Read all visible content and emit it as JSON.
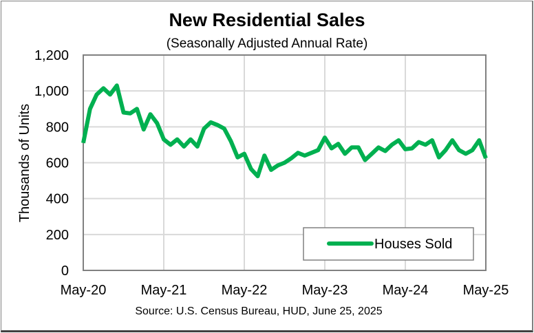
{
  "chart_data": {
    "type": "line",
    "title": "New Residential Sales",
    "subtitle": "(Seasonally Adjusted Annual Rate)",
    "xlabel": "",
    "ylabel": "Thousands of Units",
    "source": "Source:  U.S. Census Bureau, HUD, June 25, 2025",
    "ylim": [
      0,
      1200
    ],
    "yticks": [
      0,
      200,
      400,
      600,
      800,
      1000,
      1200
    ],
    "ytick_labels": [
      "0",
      "200",
      "400",
      "600",
      "800",
      "1,000",
      "1,200"
    ],
    "xtick_labels": [
      "May-20",
      "May-21",
      "May-22",
      "May-23",
      "May-24",
      "May-25"
    ],
    "x_start": "May-20",
    "x_end": "May-25",
    "x_unit": "month",
    "grid": true,
    "legend": {
      "position": "bottom-right",
      "entries": [
        "Houses Sold"
      ]
    },
    "series": [
      {
        "name": "Houses Sold",
        "color": "#00b050",
        "values": [
          710,
          900,
          980,
          1015,
          980,
          1030,
          880,
          875,
          900,
          785,
          870,
          820,
          730,
          700,
          730,
          690,
          730,
          690,
          790,
          825,
          810,
          790,
          720,
          630,
          650,
          565,
          525,
          640,
          560,
          585,
          600,
          625,
          655,
          640,
          655,
          670,
          740,
          680,
          705,
          650,
          685,
          685,
          615,
          650,
          685,
          665,
          700,
          725,
          675,
          680,
          715,
          700,
          725,
          630,
          670,
          725,
          670,
          650,
          670,
          725,
          625
        ]
      }
    ]
  }
}
